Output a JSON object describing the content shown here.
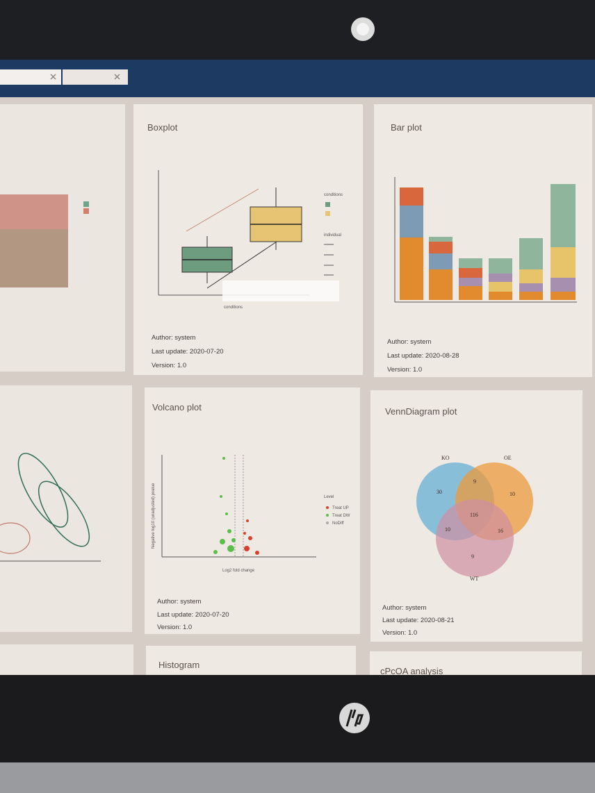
{
  "cards": [
    {
      "title": "Boxplot",
      "author": "Author: system",
      "last_update": "Last update: 2020-07-20",
      "version": "Version: 1.0",
      "x_label": "conditions",
      "legend_titles": [
        "conditions",
        "individual"
      ]
    },
    {
      "title": "Bar plot",
      "author": "Author: system",
      "last_update": "Last update: 2020-08-28",
      "version": "Version: 1.0"
    },
    {
      "title": "Volcano plot",
      "author": "Author: system",
      "last_update": "Last update: 2020-07-20",
      "version": "Version: 1.0",
      "x_label": "Log2 fold change",
      "y_label": "Negative log10 (unadjusted) pvalue",
      "legend_title": "Level",
      "legend": [
        "Treat UP",
        "Treat DW",
        "NoDiff"
      ]
    },
    {
      "title": "VennDiagram plot",
      "author": "Author: system",
      "last_update": "Last update: 2020-08-21",
      "version": "Version: 1.0",
      "sets": [
        "KO",
        "OE",
        "WT"
      ],
      "counts": [
        "30",
        "9",
        "10",
        "116",
        "10",
        "16",
        "9"
      ]
    },
    {
      "title": "Histogram"
    },
    {
      "title": "cPcOA analysis"
    }
  ]
}
